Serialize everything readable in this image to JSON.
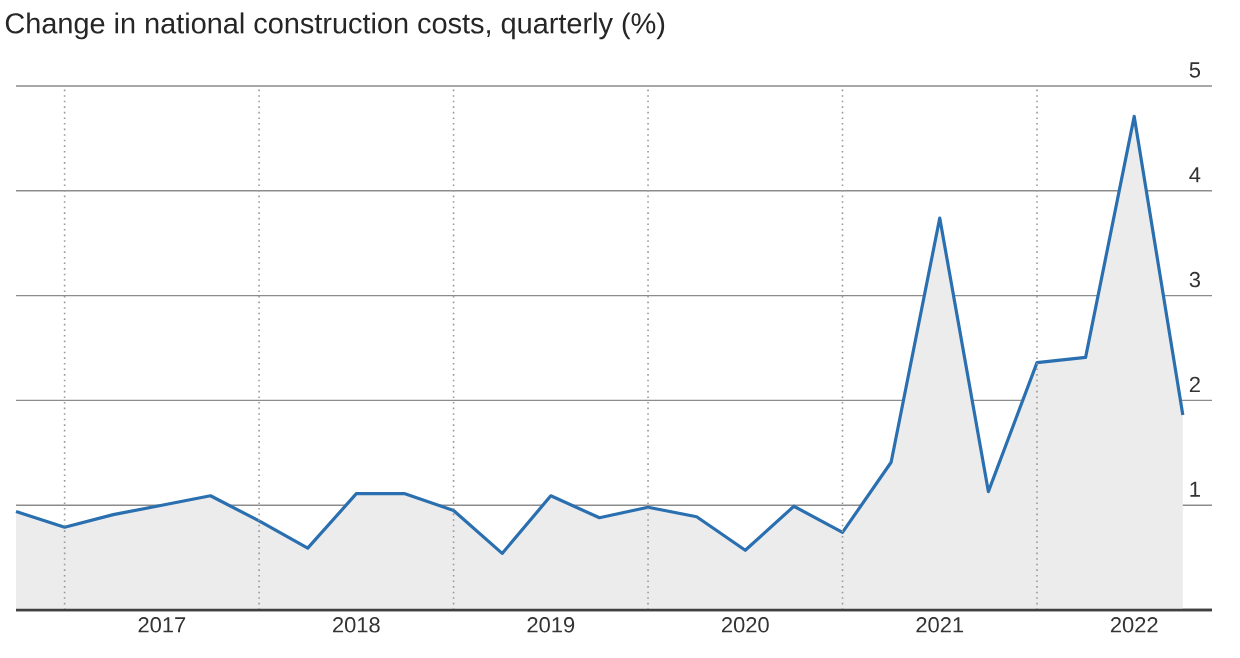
{
  "chart_data": {
    "type": "area",
    "title": "Change in national construction costs, quarterly (%)",
    "x": [
      2016.75,
      2017,
      2017.25,
      2017.5,
      2017.75,
      2018,
      2018.25,
      2018.5,
      2018.75,
      2019,
      2019.25,
      2019.5,
      2019.75,
      2020,
      2020.25,
      2020.5,
      2020.75,
      2021,
      2021.25,
      2021.5,
      2021.75,
      2022,
      2022.25,
      2022.5,
      2022.75
    ],
    "series": [
      {
        "color": "#2a6fb0",
        "values": [
          0.94,
          0.79,
          0.91,
          1.0,
          1.09,
          0.85,
          0.59,
          1.11,
          1.11,
          0.95,
          0.54,
          1.09,
          0.88,
          0.98,
          0.89,
          0.57,
          0.99,
          0.74,
          1.41,
          3.74,
          1.13,
          2.36,
          2.41,
          4.71,
          1.86
        ]
      }
    ],
    "xlim": [
      2016.75,
      2022.9
    ],
    "ylim": [
      0,
      5
    ],
    "xticks": [
      {
        "value": 2017.5,
        "label": "2017"
      },
      {
        "value": 2018.5,
        "label": "2018"
      },
      {
        "value": 2019.5,
        "label": "2019"
      },
      {
        "value": 2020.5,
        "label": "2020"
      },
      {
        "value": 2021.5,
        "label": "2021"
      },
      {
        "value": 2022.5,
        "label": "2022"
      }
    ],
    "yticks": [
      1,
      2,
      3,
      4,
      5
    ],
    "grid": "y",
    "marker": "none",
    "line_style": "solid",
    "ref_lines": [
      {
        "axis": "x",
        "value": 2017,
        "line_style": "dotted",
        "color": "#999999"
      },
      {
        "axis": "x",
        "value": 2018,
        "line_style": "dotted",
        "color": "#999999"
      },
      {
        "axis": "x",
        "value": 2019,
        "line_style": "dotted",
        "color": "#999999"
      },
      {
        "axis": "x",
        "value": 2020,
        "line_style": "dotted",
        "color": "#999999"
      },
      {
        "axis": "x",
        "value": 2021,
        "line_style": "dotted",
        "color": "#999999"
      },
      {
        "axis": "x",
        "value": 2022,
        "line_style": "dotted",
        "color": "#999999"
      }
    ]
  }
}
